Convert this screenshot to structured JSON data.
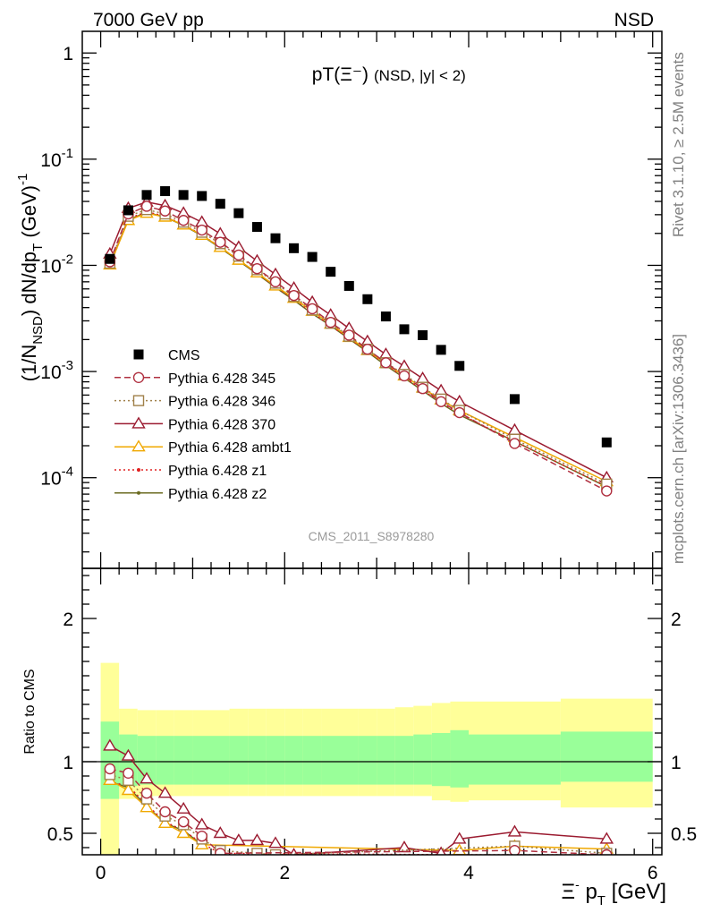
{
  "header": {
    "energy_label": "7000 GeV pp",
    "process_label": "NSD",
    "watermark": "CMS_2011_S8978280"
  },
  "side_text": {
    "rivet": "Rivet 3.1.10, ≥ 2.5M events",
    "source": "mcplots.cern.ch [arXiv:1306.3436]"
  },
  "chart_data": [
    {
      "type": "scatter",
      "panel": "main",
      "title_main": "pT(Ξ⁻)",
      "title_sub": "(NSD, |y| < 2)",
      "ylabel": "(1/N_NSD) dN/dp_T (GeV)^-1",
      "xlabel": "",
      "yscale": "log",
      "xlim": [
        -0.2,
        6.1
      ],
      "ylim": [
        1.4e-05,
        1.6
      ],
      "y_tick_labels": [
        "10^-4",
        "10^-3",
        "10^-2",
        "10^-1",
        "1"
      ],
      "legend_position": "middle-left",
      "x": [
        0.1,
        0.3,
        0.5,
        0.7,
        0.9,
        1.1,
        1.3,
        1.5,
        1.7,
        1.9,
        2.1,
        2.3,
        2.5,
        2.7,
        2.9,
        3.1,
        3.3,
        3.5,
        3.7,
        3.9,
        4.5,
        5.5
      ],
      "series": [
        {
          "name": "CMS",
          "color": "#000000",
          "marker": "square",
          "line": "none",
          "values": [
            0.0115,
            0.033,
            0.046,
            0.05,
            0.046,
            0.045,
            0.038,
            0.031,
            0.023,
            0.018,
            0.0145,
            0.012,
            0.0087,
            0.0064,
            0.0048,
            0.0033,
            0.0025,
            0.0022,
            0.0016,
            0.00113,
            0.00055,
            0.000215
          ]
        },
        {
          "name": "Pythia 6.428 345",
          "color": "#b03040",
          "marker": "circle",
          "line": "dashed",
          "values": [
            0.0108,
            0.0305,
            0.036,
            0.0325,
            0.0265,
            0.0215,
            0.0165,
            0.0125,
            0.0093,
            0.007,
            0.0052,
            0.0039,
            0.0029,
            0.0022,
            0.00162,
            0.00121,
            0.00091,
            0.00069,
            0.00052,
            0.00041,
            0.00021,
            7.5e-05
          ]
        },
        {
          "name": "Pythia 6.428 346",
          "color": "#a0804a",
          "marker": "square-open",
          "line": "dotted",
          "values": [
            0.0105,
            0.029,
            0.0335,
            0.0305,
            0.0255,
            0.0205,
            0.016,
            0.0122,
            0.0091,
            0.0068,
            0.0051,
            0.0038,
            0.00285,
            0.00215,
            0.00162,
            0.00121,
            0.00094,
            0.00071,
            0.00055,
            0.00043,
            0.00023,
            8.7e-05
          ]
        },
        {
          "name": "Pythia 6.428 370",
          "color": "#9b1b30",
          "marker": "triangle-open",
          "line": "solid",
          "values": [
            0.0128,
            0.0345,
            0.0395,
            0.0365,
            0.031,
            0.0255,
            0.0198,
            0.0148,
            0.011,
            0.0082,
            0.0061,
            0.0045,
            0.0034,
            0.00255,
            0.00192,
            0.00145,
            0.00112,
            0.00086,
            0.00066,
            0.00052,
            0.00028,
            0.0001
          ]
        },
        {
          "name": "Pythia 6.428 ambt1",
          "color": "#f0a800",
          "marker": "triangle-open",
          "line": "solid",
          "values": [
            0.0101,
            0.0265,
            0.031,
            0.0285,
            0.024,
            0.0192,
            0.0148,
            0.0112,
            0.0085,
            0.0064,
            0.0049,
            0.0037,
            0.0028,
            0.0021,
            0.00158,
            0.00119,
            0.00091,
            0.0007,
            0.00054,
            0.00043,
            0.00024,
            9.2e-05
          ]
        },
        {
          "name": "Pythia 6.428 z1",
          "color": "#e02020",
          "marker": "dot",
          "line": "dotted",
          "values": [
            0.0099,
            0.0275,
            0.032,
            0.029,
            0.0242,
            0.0194,
            0.0148,
            0.0112,
            0.0084,
            0.0063,
            0.0048,
            0.0036,
            0.0027,
            0.00205,
            0.00155,
            0.00116,
            0.00088,
            0.00067,
            0.00051,
            0.0004,
            0.00022,
            8.3e-05
          ]
        },
        {
          "name": "Pythia 6.428 z2",
          "color": "#6b6b20",
          "marker": "dot",
          "line": "solid",
          "values": [
            0.0101,
            0.027,
            0.0315,
            0.0285,
            0.0238,
            0.019,
            0.0146,
            0.011,
            0.0083,
            0.0062,
            0.0047,
            0.0035,
            0.0027,
            0.00203,
            0.00153,
            0.00114,
            0.00087,
            0.00066,
            0.0005,
            0.00039,
            0.00022,
            8.2e-05
          ]
        }
      ]
    },
    {
      "type": "line",
      "panel": "ratio",
      "xlabel": "Ξ⁻ p_T [GeV]",
      "ylabel": "Ratio to CMS",
      "xlim": [
        -0.2,
        6.1
      ],
      "ylim": [
        0.35,
        2.35
      ],
      "x_tick_labels": [
        "0",
        "2",
        "4",
        "6"
      ],
      "y_tick_labels": [
        "0.5",
        "1",
        "2"
      ],
      "reference_line": 1,
      "bands": {
        "x_edges": [
          0.0,
          0.2,
          0.4,
          0.6,
          0.8,
          1.0,
          1.2,
          1.4,
          1.6,
          1.8,
          2.0,
          2.2,
          2.4,
          2.6,
          2.8,
          3.0,
          3.2,
          3.4,
          3.6,
          3.8,
          4.0,
          5.0,
          6.0
        ],
        "stat_color": "#99ff99",
        "syst_color": "#ffff99",
        "stat_lo": [
          0.74,
          0.83,
          0.84,
          0.84,
          0.84,
          0.84,
          0.84,
          0.84,
          0.84,
          0.84,
          0.84,
          0.84,
          0.84,
          0.84,
          0.84,
          0.84,
          0.84,
          0.84,
          0.83,
          0.82,
          0.84,
          0.86
        ],
        "stat_hi": [
          1.28,
          1.19,
          1.18,
          1.18,
          1.18,
          1.18,
          1.18,
          1.18,
          1.18,
          1.18,
          1.18,
          1.18,
          1.18,
          1.18,
          1.18,
          1.18,
          1.18,
          1.19,
          1.2,
          1.22,
          1.19,
          1.21
        ],
        "syst_lo": [
          0.0,
          0.74,
          0.76,
          0.76,
          0.76,
          0.76,
          0.76,
          0.76,
          0.76,
          0.76,
          0.76,
          0.76,
          0.76,
          0.76,
          0.76,
          0.76,
          0.76,
          0.76,
          0.73,
          0.72,
          0.73,
          0.68
        ],
        "syst_hi": [
          1.69,
          1.37,
          1.36,
          1.36,
          1.36,
          1.36,
          1.36,
          1.37,
          1.37,
          1.37,
          1.37,
          1.37,
          1.37,
          1.37,
          1.37,
          1.37,
          1.38,
          1.39,
          1.41,
          1.42,
          1.42,
          1.44
        ]
      },
      "series": [
        {
          "name": "Pythia 6.428 345",
          "color": "#b03040",
          "marker": "circle",
          "x": [
            0.1,
            0.3,
            0.5,
            0.7,
            0.9,
            1.1,
            1.3,
            4.5,
            5.5
          ],
          "values": [
            0.95,
            0.92,
            0.78,
            0.65,
            0.58,
            0.48,
            0.36,
            0.38,
            0.35
          ]
        },
        {
          "name": "Pythia 6.428 346",
          "color": "#a0804a",
          "marker": "square-open",
          "x": [
            0.1,
            0.3,
            0.5,
            0.7,
            0.9,
            1.1,
            1.3,
            1.7,
            1.9,
            4.5,
            5.5
          ],
          "values": [
            0.91,
            0.87,
            0.74,
            0.62,
            0.56,
            0.46,
            0.38,
            0.36,
            0.35,
            0.41,
            0.36
          ]
        },
        {
          "name": "Pythia 6.428 370",
          "color": "#9b1b30",
          "marker": "triangle-open",
          "x": [
            0.1,
            0.3,
            0.5,
            0.7,
            0.9,
            1.1,
            1.3,
            1.5,
            1.7,
            1.9,
            2.1,
            3.3,
            3.7,
            3.9,
            4.5,
            5.5
          ],
          "values": [
            1.11,
            1.04,
            0.88,
            0.78,
            0.67,
            0.56,
            0.5,
            0.45,
            0.45,
            0.43,
            0.35,
            0.4,
            0.36,
            0.46,
            0.51,
            0.46
          ]
        },
        {
          "name": "Pythia 6.428 ambt1",
          "color": "#f0a800",
          "marker": "triangle-open",
          "x": [
            0.1,
            0.3,
            0.5,
            0.7,
            0.9,
            1.1,
            3.9,
            4.5,
            5.5
          ],
          "values": [
            0.87,
            0.8,
            0.68,
            0.57,
            0.5,
            0.42,
            0.38,
            0.41,
            0.39
          ]
        },
        {
          "name": "Pythia 6.428 z1",
          "color": "#e02020",
          "marker": "dot",
          "x": [
            0.1,
            0.3,
            0.5,
            0.7,
            0.9,
            1.1,
            1.3,
            3.9,
            4.5,
            5.5
          ],
          "values": [
            0.86,
            0.83,
            0.7,
            0.58,
            0.52,
            0.43,
            0.36,
            0.35,
            0.35,
            0.35
          ]
        },
        {
          "name": "Pythia 6.428 z2",
          "color": "#6b6b20",
          "marker": "dot",
          "x": [
            0.1,
            0.3,
            0.5,
            0.7,
            0.9,
            1.1
          ],
          "values": [
            0.86,
            0.82,
            0.69,
            0.57,
            0.52,
            0.42
          ]
        }
      ]
    }
  ]
}
